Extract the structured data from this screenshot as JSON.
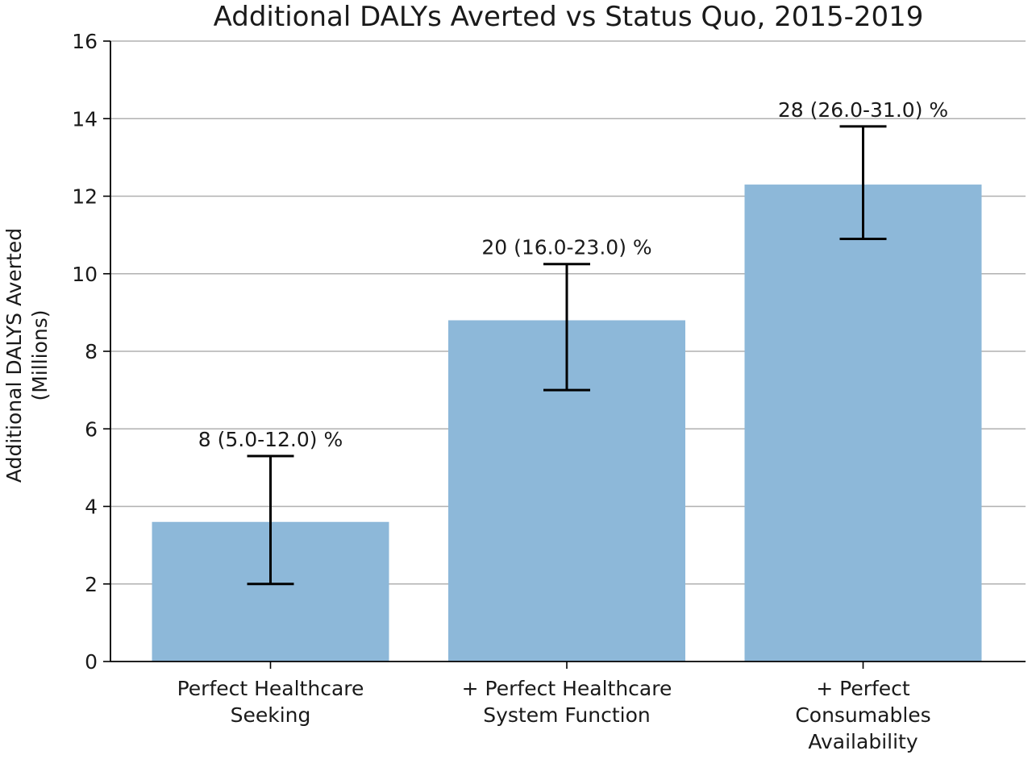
{
  "chart_data": {
    "type": "bar",
    "title": "Additional DALYs Averted vs Status Quo, 2015-2019",
    "ylabel": [
      "Additional DALYS Averted",
      "(Millions)"
    ],
    "xlabel": "",
    "ylim": [
      0,
      16
    ],
    "yticks": [
      "0",
      "2",
      "4",
      "6",
      "8",
      "10",
      "12",
      "14",
      "16"
    ],
    "grid": "y",
    "categories": [
      [
        "Perfect Healthcare",
        "Seeking"
      ],
      [
        "+ Perfect Healthcare",
        "System Function"
      ],
      [
        "+ Perfect",
        "Consumables",
        "Availability"
      ]
    ],
    "values": [
      3.6,
      8.8,
      12.3
    ],
    "error_low": [
      2.0,
      7.0,
      10.9
    ],
    "error_high": [
      5.3,
      10.25,
      13.8
    ],
    "annotations": [
      "8 (5.0-12.0) %",
      "20 (16.0-23.0) %",
      "28 (26.0-31.0) %"
    ],
    "bar_color": "#8db8d9",
    "error_color": "#000000",
    "grid_color": "#b0b0b0",
    "axis_color": "#000000"
  }
}
